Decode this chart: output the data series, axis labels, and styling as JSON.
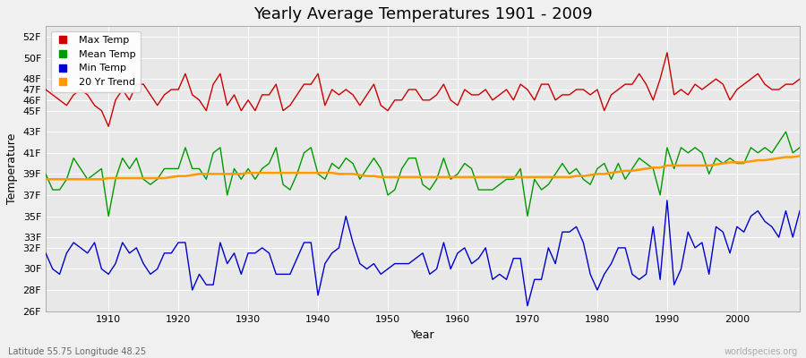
{
  "title": "Yearly Average Temperatures 1901 - 2009",
  "xlabel": "Year",
  "ylabel": "Temperature",
  "subtitle_left": "Latitude 55.75 Longitude 48.25",
  "subtitle_right": "worldspecies.org",
  "legend": [
    "Max Temp",
    "Mean Temp",
    "Min Temp",
    "20 Yr Trend"
  ],
  "colors": {
    "max": "#cc0000",
    "mean": "#009900",
    "min": "#0000cc",
    "trend": "#ff9900",
    "fig_bg": "#f0f0f0",
    "plot_bg": "#e8e8e8",
    "grid": "#ffffff"
  },
  "years": [
    1901,
    1902,
    1903,
    1904,
    1905,
    1906,
    1907,
    1908,
    1909,
    1910,
    1911,
    1912,
    1913,
    1914,
    1915,
    1916,
    1917,
    1918,
    1919,
    1920,
    1921,
    1922,
    1923,
    1924,
    1925,
    1926,
    1927,
    1928,
    1929,
    1930,
    1931,
    1932,
    1933,
    1934,
    1935,
    1936,
    1937,
    1938,
    1939,
    1940,
    1941,
    1942,
    1943,
    1944,
    1945,
    1946,
    1947,
    1948,
    1949,
    1950,
    1951,
    1952,
    1953,
    1954,
    1955,
    1956,
    1957,
    1958,
    1959,
    1960,
    1961,
    1962,
    1963,
    1964,
    1965,
    1966,
    1967,
    1968,
    1969,
    1970,
    1971,
    1972,
    1973,
    1974,
    1975,
    1976,
    1977,
    1978,
    1979,
    1980,
    1981,
    1982,
    1983,
    1984,
    1985,
    1986,
    1987,
    1988,
    1989,
    1990,
    1991,
    1992,
    1993,
    1994,
    1995,
    1996,
    1997,
    1998,
    1999,
    2000,
    2001,
    2002,
    2003,
    2004,
    2005,
    2006,
    2007,
    2008,
    2009
  ],
  "max_temp": [
    47.0,
    46.5,
    46.0,
    45.5,
    46.5,
    47.0,
    46.5,
    45.5,
    45.0,
    43.5,
    46.0,
    47.0,
    46.0,
    47.5,
    47.5,
    46.5,
    45.5,
    46.5,
    47.0,
    47.0,
    48.5,
    46.5,
    46.0,
    45.0,
    47.5,
    48.5,
    45.5,
    46.5,
    45.0,
    46.0,
    45.0,
    46.5,
    46.5,
    47.5,
    45.0,
    45.5,
    46.5,
    47.5,
    47.5,
    48.5,
    45.5,
    47.0,
    46.5,
    47.0,
    46.5,
    45.5,
    46.5,
    47.5,
    45.5,
    45.0,
    46.0,
    46.0,
    47.0,
    47.0,
    46.0,
    46.0,
    46.5,
    47.5,
    46.0,
    45.5,
    47.0,
    46.5,
    46.5,
    47.0,
    46.0,
    46.5,
    47.0,
    46.0,
    47.5,
    47.0,
    46.0,
    47.5,
    47.5,
    46.0,
    46.5,
    46.5,
    47.0,
    47.0,
    46.5,
    47.0,
    45.0,
    46.5,
    47.0,
    47.5,
    47.5,
    48.5,
    47.5,
    46.0,
    48.0,
    50.5,
    46.5,
    47.0,
    46.5,
    47.5,
    47.0,
    47.5,
    48.0,
    47.5,
    46.0,
    47.0,
    47.5,
    48.0,
    48.5,
    47.5,
    47.0,
    47.0,
    47.5,
    47.5,
    48.0
  ],
  "mean_temp": [
    39.0,
    37.5,
    37.5,
    38.5,
    40.5,
    39.5,
    38.5,
    39.0,
    39.5,
    35.0,
    38.5,
    40.5,
    39.5,
    40.5,
    38.5,
    38.0,
    38.5,
    39.5,
    39.5,
    39.5,
    41.5,
    39.5,
    39.5,
    38.5,
    41.0,
    41.5,
    37.0,
    39.5,
    38.5,
    39.5,
    38.5,
    39.5,
    40.0,
    41.5,
    38.0,
    37.5,
    39.0,
    41.0,
    41.5,
    39.0,
    38.5,
    40.0,
    39.5,
    40.5,
    40.0,
    38.5,
    39.5,
    40.5,
    39.5,
    37.0,
    37.5,
    39.5,
    40.5,
    40.5,
    38.0,
    37.5,
    38.5,
    40.5,
    38.5,
    39.0,
    40.0,
    39.5,
    37.5,
    37.5,
    37.5,
    38.0,
    38.5,
    38.5,
    39.5,
    35.0,
    38.5,
    37.5,
    38.0,
    39.0,
    40.0,
    39.0,
    39.5,
    38.5,
    38.0,
    39.5,
    40.0,
    38.5,
    40.0,
    38.5,
    39.5,
    40.5,
    40.0,
    39.5,
    37.0,
    41.5,
    39.5,
    41.5,
    41.0,
    41.5,
    41.0,
    39.0,
    40.5,
    40.0,
    40.5,
    40.0,
    40.0,
    41.5,
    41.0,
    41.5,
    41.0,
    42.0,
    43.0,
    41.0,
    41.5
  ],
  "min_temp": [
    31.5,
    30.0,
    29.5,
    31.5,
    32.5,
    32.0,
    31.5,
    32.5,
    30.0,
    29.5,
    30.5,
    32.5,
    31.5,
    32.0,
    30.5,
    29.5,
    30.0,
    31.5,
    31.5,
    32.5,
    32.5,
    28.0,
    29.5,
    28.5,
    28.5,
    32.5,
    30.5,
    31.5,
    29.5,
    31.5,
    31.5,
    32.0,
    31.5,
    29.5,
    29.5,
    29.5,
    31.0,
    32.5,
    32.5,
    27.5,
    30.5,
    31.5,
    32.0,
    35.0,
    32.5,
    30.5,
    30.0,
    30.5,
    29.5,
    30.0,
    30.5,
    30.5,
    30.5,
    31.0,
    31.5,
    29.5,
    30.0,
    32.5,
    30.0,
    31.5,
    32.0,
    30.5,
    31.0,
    32.0,
    29.0,
    29.5,
    29.0,
    31.0,
    31.0,
    26.5,
    29.0,
    29.0,
    32.0,
    30.5,
    33.5,
    33.5,
    34.0,
    32.5,
    29.5,
    28.0,
    29.5,
    30.5,
    32.0,
    32.0,
    29.5,
    29.0,
    29.5,
    34.0,
    29.0,
    36.5,
    28.5,
    30.0,
    33.5,
    32.0,
    32.5,
    29.5,
    34.0,
    33.5,
    31.5,
    34.0,
    33.5,
    35.0,
    35.5,
    34.5,
    34.0,
    33.0,
    35.5,
    33.0,
    35.5
  ],
  "trend": [
    38.5,
    38.5,
    38.5,
    38.5,
    38.5,
    38.5,
    38.5,
    38.5,
    38.5,
    38.6,
    38.6,
    38.6,
    38.6,
    38.6,
    38.6,
    38.6,
    38.6,
    38.6,
    38.7,
    38.8,
    38.8,
    38.9,
    39.0,
    39.0,
    39.0,
    39.0,
    39.0,
    39.0,
    39.0,
    39.1,
    39.1,
    39.1,
    39.1,
    39.1,
    39.1,
    39.1,
    39.1,
    39.1,
    39.1,
    39.1,
    39.1,
    39.1,
    39.0,
    39.0,
    39.0,
    38.9,
    38.8,
    38.8,
    38.7,
    38.7,
    38.7,
    38.7,
    38.7,
    38.7,
    38.7,
    38.7,
    38.7,
    38.7,
    38.7,
    38.7,
    38.7,
    38.7,
    38.7,
    38.7,
    38.7,
    38.7,
    38.7,
    38.7,
    38.7,
    38.7,
    38.7,
    38.7,
    38.7,
    38.7,
    38.7,
    38.7,
    38.8,
    38.8,
    38.9,
    39.0,
    39.0,
    39.1,
    39.2,
    39.3,
    39.3,
    39.4,
    39.5,
    39.6,
    39.6,
    39.8,
    39.8,
    39.8,
    39.8,
    39.8,
    39.8,
    39.8,
    39.9,
    40.0,
    40.1,
    40.1,
    40.1,
    40.2,
    40.3,
    40.3,
    40.4,
    40.5,
    40.6,
    40.6,
    40.7
  ],
  "ylim": [
    26,
    53
  ],
  "yticks": [
    26,
    28,
    30,
    32,
    33,
    35,
    37,
    39,
    41,
    43,
    45,
    46,
    47,
    48,
    50,
    52
  ],
  "xlim": [
    1901,
    2009
  ],
  "xticks": [
    1910,
    1920,
    1930,
    1940,
    1950,
    1960,
    1970,
    1980,
    1990,
    2000
  ]
}
